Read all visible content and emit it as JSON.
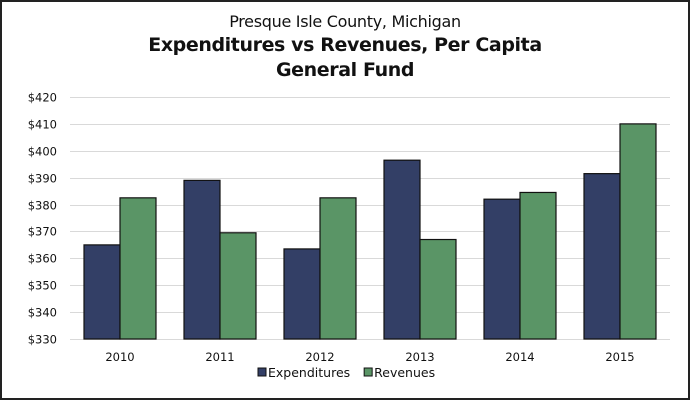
{
  "chart_data": {
    "type": "bar",
    "subtitle": "Presque Isle County, Michigan",
    "title_lines": [
      "Expenditures vs Revenues, Per Capita",
      "General Fund"
    ],
    "xlabel": "",
    "ylabel": "",
    "categories": [
      "2010",
      "2011",
      "2012",
      "2013",
      "2014",
      "2015"
    ],
    "series": [
      {
        "name": "Expenditures",
        "color": "#333F66",
        "values": [
          365,
          389,
          363.5,
          396.5,
          382,
          391.5
        ]
      },
      {
        "name": "Revenues",
        "color": "#5A9566",
        "values": [
          382.5,
          369.5,
          382.5,
          367,
          384.5,
          410
        ]
      }
    ],
    "ylim": [
      330,
      420
    ],
    "y_ticks": [
      330,
      340,
      350,
      360,
      370,
      380,
      390,
      400,
      410,
      420
    ],
    "y_tick_labels": [
      "$330",
      "$340",
      "$350",
      "$360",
      "$370",
      "$380",
      "$390",
      "$400",
      "$410",
      "$420"
    ],
    "grid": true,
    "legend_position": "bottom"
  }
}
